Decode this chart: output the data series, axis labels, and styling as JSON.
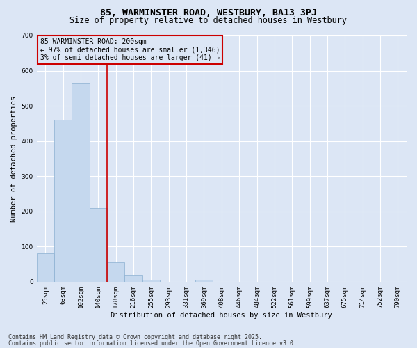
{
  "title_line1": "85, WARMINSTER ROAD, WESTBURY, BA13 3PJ",
  "title_line2": "Size of property relative to detached houses in Westbury",
  "xlabel": "Distribution of detached houses by size in Westbury",
  "ylabel": "Number of detached properties",
  "bar_labels": [
    "25sqm",
    "63sqm",
    "102sqm",
    "140sqm",
    "178sqm",
    "216sqm",
    "255sqm",
    "293sqm",
    "331sqm",
    "369sqm",
    "408sqm",
    "446sqm",
    "484sqm",
    "522sqm",
    "561sqm",
    "599sqm",
    "637sqm",
    "675sqm",
    "714sqm",
    "752sqm",
    "790sqm"
  ],
  "bar_values": [
    80,
    460,
    565,
    210,
    55,
    20,
    5,
    0,
    0,
    5,
    0,
    0,
    0,
    0,
    0,
    0,
    0,
    0,
    0,
    0,
    0
  ],
  "bar_color": "#c5d8ee",
  "bar_edge_color": "#8ab0d0",
  "vline_x_index": 3.5,
  "vline_color": "#cc0000",
  "annotation_text": "85 WARMINSTER ROAD: 200sqm\n← 97% of detached houses are smaller (1,346)\n3% of semi-detached houses are larger (41) →",
  "annotation_box_color": "#cc0000",
  "ylim": [
    0,
    700
  ],
  "yticks": [
    0,
    100,
    200,
    300,
    400,
    500,
    600,
    700
  ],
  "background_color": "#dce6f5",
  "grid_color": "#ffffff",
  "footer_line1": "Contains HM Land Registry data © Crown copyright and database right 2025.",
  "footer_line2": "Contains public sector information licensed under the Open Government Licence v3.0.",
  "title_fontsize": 9.5,
  "subtitle_fontsize": 8.5,
  "axis_label_fontsize": 7.5,
  "tick_fontsize": 6.5,
  "annotation_fontsize": 7,
  "footer_fontsize": 6
}
